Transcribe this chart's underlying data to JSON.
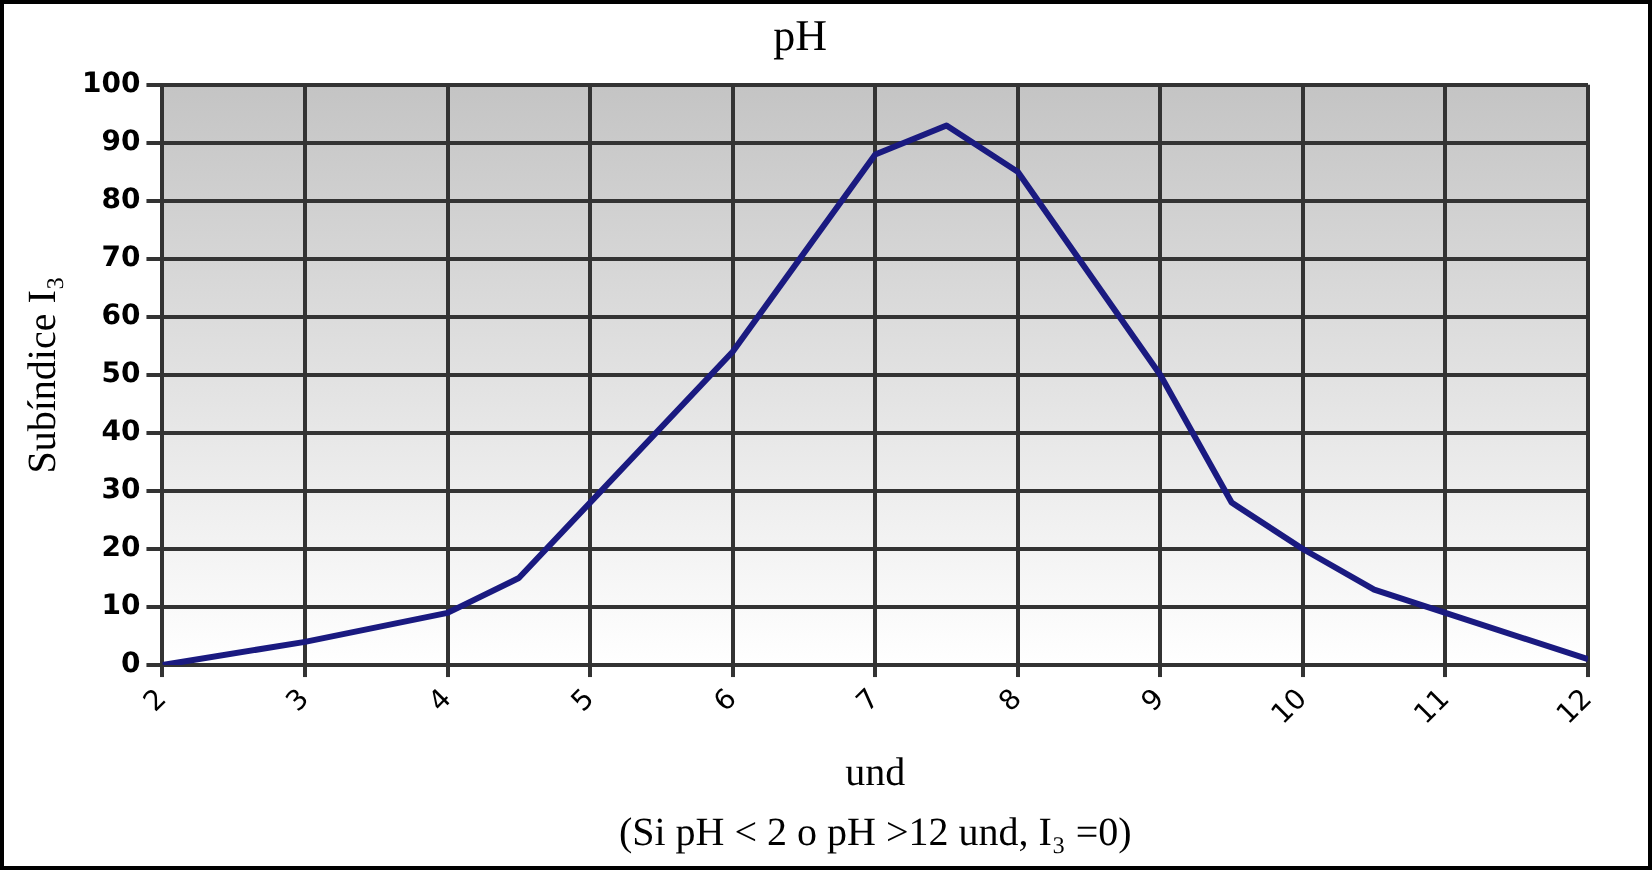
{
  "chart_data": {
    "type": "line",
    "title": "pH",
    "xlabel": "und",
    "ylabel": "Subíndice I₃",
    "annotations": [
      "(Si pH < 2 o pH >12 und, I₃ =0)"
    ],
    "series": [
      {
        "color": "#1a1a80",
        "x": [
          2,
          3,
          4,
          4.5,
          5,
          6,
          7,
          7.5,
          8,
          9,
          9.5,
          10,
          10.5,
          11,
          12
        ],
        "values": [
          0,
          4,
          9,
          15,
          28,
          54,
          88,
          93,
          85,
          50,
          28,
          20,
          13,
          9,
          1
        ]
      }
    ],
    "xlim": [
      2,
      12
    ],
    "xticks": [
      2,
      3,
      4,
      5,
      6,
      7,
      8,
      9,
      10,
      11,
      12
    ],
    "ylim": [
      0,
      100
    ],
    "yticks": [
      0,
      10,
      20,
      30,
      40,
      50,
      60,
      70,
      80,
      90,
      100
    ],
    "grid": true,
    "legend": false,
    "marker": "none",
    "line_style": "solid"
  }
}
